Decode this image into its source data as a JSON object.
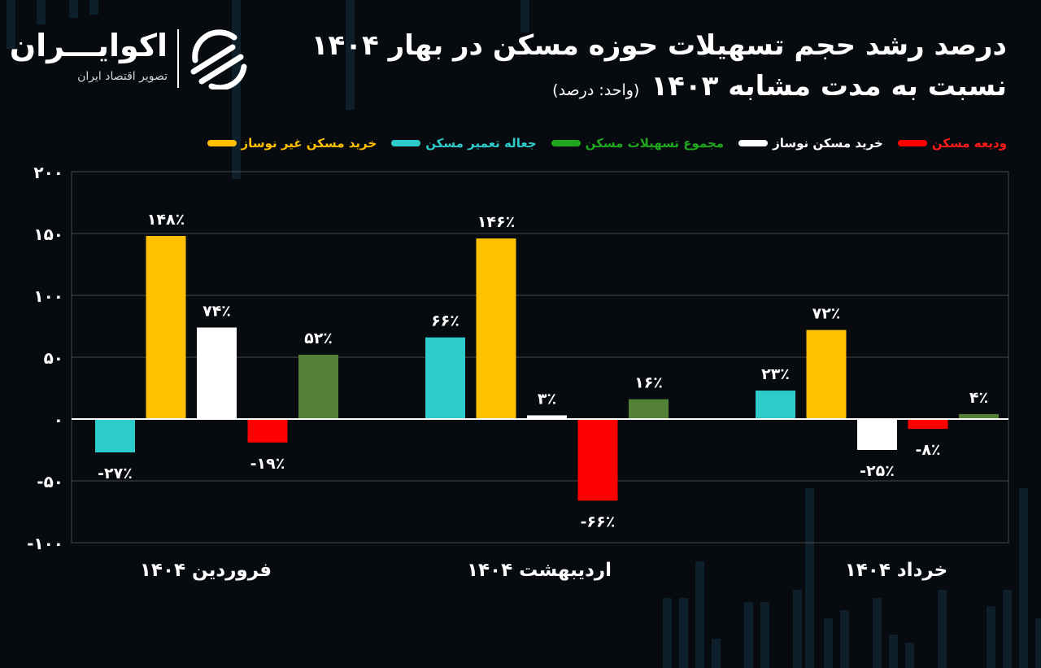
{
  "header": {
    "title_line1": "درصد رشد حجم تسهیلات حوزه مسکن در بهار ۱۴۰۴",
    "title_line2": "نسبت به مدت مشابه ۱۴۰۳",
    "unit_note": "(واحد: درصد)"
  },
  "logo": {
    "name": "اکوایـــران",
    "tagline": "تصویر اقتصاد ایران",
    "mark_icon": "ecoiran-logo-icon"
  },
  "chart_data": {
    "type": "bar",
    "title": "درصد رشد حجم تسهیلات حوزه مسکن در بهار ۱۴۰۴ نسبت به مدت مشابه ۱۴۰۳",
    "ylabel": "",
    "xlabel": "",
    "ylim": [
      -100,
      200
    ],
    "yticks": [
      -100,
      -50,
      0,
      50,
      100,
      150,
      200
    ],
    "ytick_labels": [
      "-۱۰۰",
      "-۵۰",
      "۰",
      "۵۰",
      "۱۰۰",
      "۱۵۰",
      "۲۰۰"
    ],
    "grid": true,
    "legend_position": "top",
    "categories": [
      "فروردین ۱۴۰۴",
      "اردیبهشت ۱۴۰۴",
      "خرداد ۱۴۰۴"
    ],
    "series": [
      {
        "name": "جعاله تعمیر مسکن",
        "color": "#2ecbcb",
        "values": [
          -27,
          66,
          23
        ],
        "labels": [
          "-۲۷٪",
          "۶۶٪",
          "۲۳٪"
        ]
      },
      {
        "name": "خرید مسکن غیر نوساز",
        "color": "#ffc000",
        "values": [
          148,
          146,
          72
        ],
        "labels": [
          "۱۴۸٪",
          "۱۴۶٪",
          "۷۲٪"
        ]
      },
      {
        "name": "خرید مسکن نوساز",
        "color": "#ffffff",
        "values": [
          74,
          3,
          -25
        ],
        "labels": [
          "۷۴٪",
          "۳٪",
          "-۲۵٪"
        ]
      },
      {
        "name": "ودیعه مسکن",
        "color": "#ff0000",
        "values": [
          -19,
          -66,
          -8
        ],
        "labels": [
          "-۱۹٪",
          "-۶۶٪",
          "-۸٪"
        ]
      },
      {
        "name": "مجموع تسهیلات مسکن",
        "color": "#538135",
        "values": [
          52,
          16,
          4
        ],
        "labels": [
          "۵۲٪",
          "۱۶٪",
          "۴٪"
        ]
      }
    ],
    "legend_order": [
      1,
      0,
      4,
      2,
      3
    ],
    "legend_text_colors": [
      "#ffc000",
      "#2ecbcb",
      "#1fa81f",
      "#ffffff",
      "#ff1a1a"
    ]
  }
}
